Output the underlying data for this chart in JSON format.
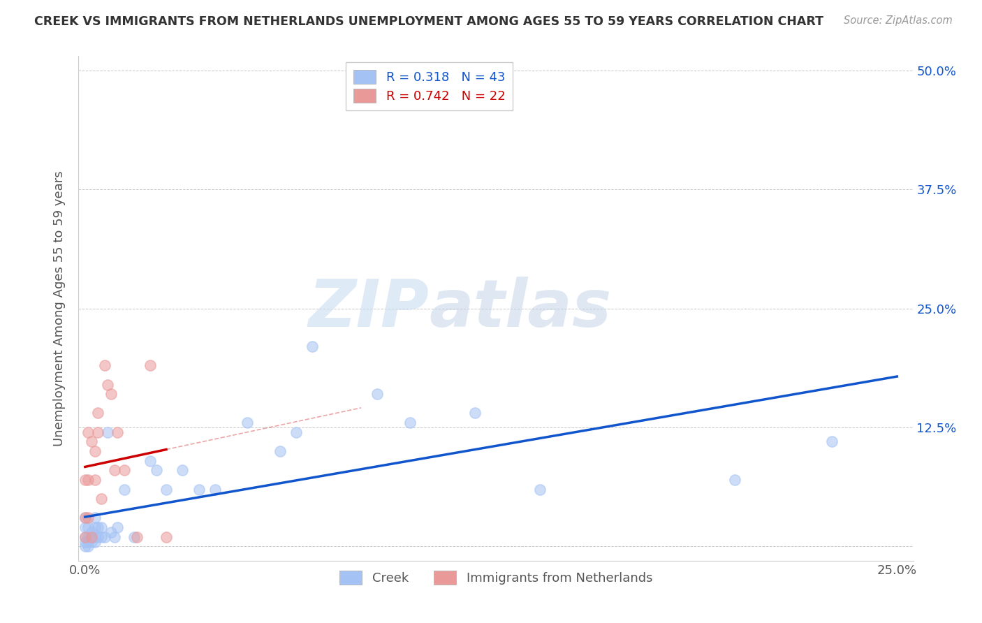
{
  "title": "CREEK VS IMMIGRANTS FROM NETHERLANDS UNEMPLOYMENT AMONG AGES 55 TO 59 YEARS CORRELATION CHART",
  "source": "Source: ZipAtlas.com",
  "ylabel": "Unemployment Among Ages 55 to 59 years",
  "xlim": [
    -0.002,
    0.255
  ],
  "ylim": [
    -0.015,
    0.515
  ],
  "creek_R": "0.318",
  "creek_N": "43",
  "netherlands_R": "0.742",
  "netherlands_N": "22",
  "creek_color": "#a4c2f4",
  "netherlands_color": "#ea9999",
  "creek_line_color": "#1155cc",
  "netherlands_line_color": "#cc0000",
  "legend_creek": "Creek",
  "legend_neth": "Immigrants from Netherlands",
  "watermark_zip": "ZIP",
  "watermark_atlas": "atlas",
  "creek_x": [
    0.0,
    0.0,
    0.0,
    0.0,
    0.0,
    0.001,
    0.001,
    0.001,
    0.001,
    0.002,
    0.002,
    0.002,
    0.003,
    0.003,
    0.003,
    0.003,
    0.004,
    0.004,
    0.005,
    0.005,
    0.006,
    0.007,
    0.008,
    0.009,
    0.01,
    0.012,
    0.015,
    0.02,
    0.022,
    0.025,
    0.03,
    0.035,
    0.04,
    0.05,
    0.06,
    0.065,
    0.07,
    0.09,
    0.1,
    0.12,
    0.14,
    0.2,
    0.23
  ],
  "creek_y": [
    0.0,
    0.005,
    0.01,
    0.02,
    0.03,
    0.0,
    0.005,
    0.01,
    0.02,
    0.005,
    0.01,
    0.015,
    0.005,
    0.01,
    0.02,
    0.03,
    0.01,
    0.02,
    0.01,
    0.02,
    0.01,
    0.12,
    0.015,
    0.01,
    0.02,
    0.06,
    0.01,
    0.09,
    0.08,
    0.06,
    0.08,
    0.06,
    0.06,
    0.13,
    0.1,
    0.12,
    0.21,
    0.16,
    0.13,
    0.14,
    0.06,
    0.07,
    0.11
  ],
  "netherlands_x": [
    0.0,
    0.0,
    0.0,
    0.001,
    0.001,
    0.001,
    0.002,
    0.002,
    0.003,
    0.003,
    0.004,
    0.004,
    0.005,
    0.006,
    0.007,
    0.008,
    0.009,
    0.01,
    0.012,
    0.016,
    0.02,
    0.025
  ],
  "netherlands_y": [
    0.01,
    0.03,
    0.07,
    0.03,
    0.07,
    0.12,
    0.01,
    0.11,
    0.07,
    0.1,
    0.12,
    0.14,
    0.05,
    0.19,
    0.17,
    0.16,
    0.08,
    0.12,
    0.08,
    0.01,
    0.19,
    0.01
  ],
  "neth_trend_x_start": 0.0,
  "neth_trend_x_solid_end": 0.025,
  "neth_trend_x_dash_end": 0.085,
  "creek_trend_x_start": 0.0,
  "creek_trend_x_end": 0.25
}
